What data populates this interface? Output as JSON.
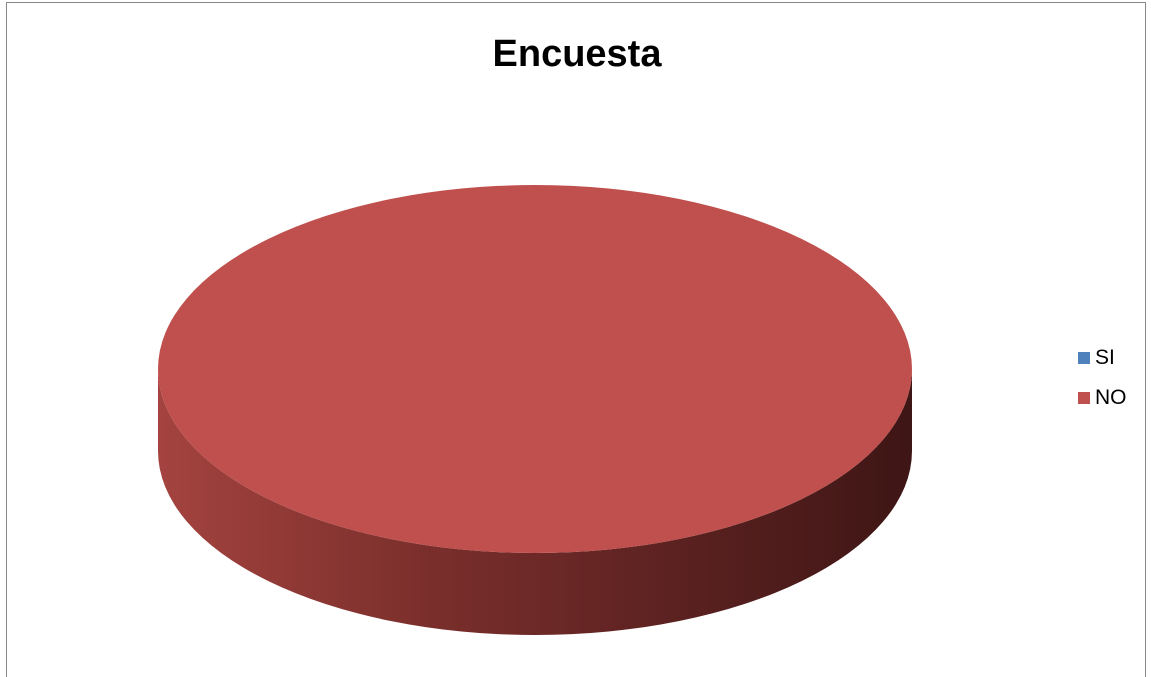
{
  "chart_data": {
    "type": "pie",
    "title": "Encuesta",
    "categories": [
      "SI",
      "NO"
    ],
    "values": [
      0,
      100
    ],
    "colors": [
      "#4f81bd",
      "#c0504d"
    ],
    "legend_position": "right",
    "style": "3d"
  }
}
